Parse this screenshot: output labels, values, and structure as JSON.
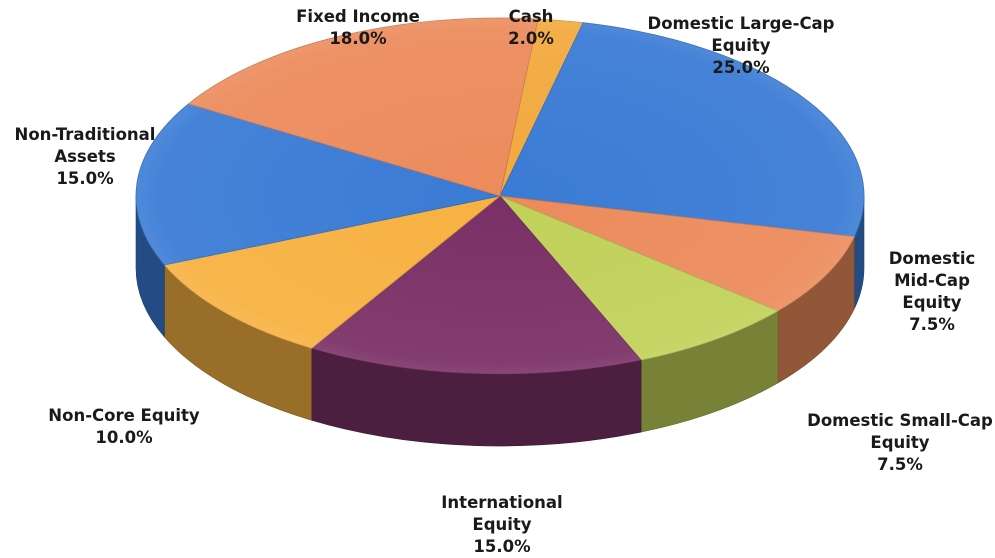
{
  "chart_data": {
    "type": "pie",
    "style": "3d",
    "legend": "none",
    "slices": [
      {
        "label_lines": [
          "Cash"
        ],
        "value_text": "2.0%",
        "value": 2.0,
        "color": "#F2A93E"
      },
      {
        "label_lines": [
          "Domestic Large-Cap",
          "Equity"
        ],
        "value_text": "25.0%",
        "value": 25.0,
        "color": "#3A7BD5"
      },
      {
        "label_lines": [
          "Domestic",
          "Mid-Cap",
          "Equity"
        ],
        "value_text": "7.5%",
        "value": 7.5,
        "color": "#EC8B5C"
      },
      {
        "label_lines": [
          "Domestic Small-Cap",
          "Equity"
        ],
        "value_text": "7.5%",
        "value": 7.5,
        "color": "#C1D159"
      },
      {
        "label_lines": [
          "International",
          "Equity"
        ],
        "value_text": "15.0%",
        "value": 15.0,
        "color": "#7A3066"
      },
      {
        "label_lines": [
          "Non-Core Equity"
        ],
        "value_text": "10.0%",
        "value": 10.0,
        "color": "#F7B141"
      },
      {
        "label_lines": [
          "Non-Traditional",
          "Assets"
        ],
        "value_text": "15.0%",
        "value": 15.0,
        "color": "#3A7BD5"
      },
      {
        "label_lines": [
          "Fixed Income"
        ],
        "value_text": "18.0%",
        "value": 18.0,
        "color": "#EC8B5C"
      }
    ]
  }
}
